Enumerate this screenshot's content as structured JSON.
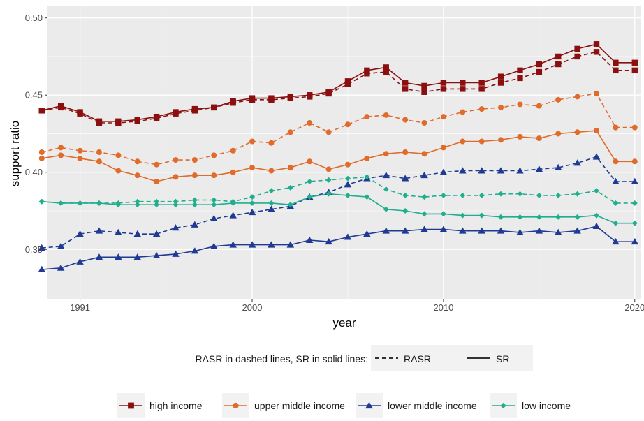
{
  "chart_data": {
    "type": "line",
    "xlabel": "year",
    "ylabel": "support ratio",
    "xlim": [
      1989.3,
      2020.3
    ],
    "ylim": [
      0.318,
      0.508
    ],
    "x_ticks": [
      1991,
      2000,
      2010,
      2020
    ],
    "x_tick_labels": [
      "1991",
      "2000",
      "2010",
      "2020"
    ],
    "y_ticks": [
      0.35,
      0.4,
      0.45,
      0.5
    ],
    "y_tick_labels": [
      "0.35",
      "0.40",
      "0.45",
      "0.50"
    ],
    "grid": true,
    "x": [
      1989,
      1990,
      1991,
      1992,
      1993,
      1994,
      1995,
      1996,
      1997,
      1998,
      1999,
      2000,
      2001,
      2002,
      2003,
      2004,
      2005,
      2006,
      2007,
      2008,
      2009,
      2010,
      2011,
      2012,
      2013,
      2014,
      2015,
      2016,
      2017,
      2018,
      2019,
      2020
    ],
    "series": [
      {
        "name": "high income",
        "line": "SR",
        "color": "#8b0f0f",
        "marker": "square",
        "values": [
          0.44,
          0.443,
          0.439,
          0.433,
          0.433,
          0.434,
          0.436,
          0.439,
          0.441,
          0.442,
          0.446,
          0.448,
          0.448,
          0.449,
          0.45,
          0.452,
          0.459,
          0.466,
          0.468,
          0.458,
          0.456,
          0.458,
          0.458,
          0.458,
          0.462,
          0.466,
          0.47,
          0.475,
          0.48,
          0.483,
          0.471,
          0.471
        ]
      },
      {
        "name": "high income",
        "line": "RASR",
        "color": "#8b0f0f",
        "marker": "square",
        "values": [
          0.44,
          0.442,
          0.438,
          0.432,
          0.432,
          0.433,
          0.435,
          0.438,
          0.44,
          0.442,
          0.445,
          0.447,
          0.447,
          0.448,
          0.449,
          0.451,
          0.457,
          0.464,
          0.465,
          0.454,
          0.452,
          0.454,
          0.454,
          0.454,
          0.458,
          0.461,
          0.465,
          0.47,
          0.475,
          0.478,
          0.466,
          0.466
        ]
      },
      {
        "name": "upper middle income",
        "line": "SR",
        "color": "#e06b2b",
        "marker": "circle",
        "values": [
          0.409,
          0.411,
          0.409,
          0.407,
          0.401,
          0.398,
          0.394,
          0.397,
          0.398,
          0.398,
          0.4,
          0.403,
          0.401,
          0.403,
          0.407,
          0.402,
          0.405,
          0.409,
          0.412,
          0.413,
          0.412,
          0.416,
          0.42,
          0.42,
          0.421,
          0.423,
          0.422,
          0.425,
          0.426,
          0.427,
          0.407,
          0.407
        ]
      },
      {
        "name": "upper middle income",
        "line": "RASR",
        "color": "#e06b2b",
        "marker": "circle",
        "values": [
          0.413,
          0.416,
          0.414,
          0.413,
          0.411,
          0.407,
          0.405,
          0.408,
          0.408,
          0.411,
          0.414,
          0.42,
          0.419,
          0.426,
          0.432,
          0.426,
          0.431,
          0.436,
          0.437,
          0.434,
          0.432,
          0.436,
          0.439,
          0.441,
          0.442,
          0.444,
          0.443,
          0.447,
          0.449,
          0.451,
          0.429,
          0.429
        ]
      },
      {
        "name": "lower middle income",
        "line": "SR",
        "color": "#1f3a93",
        "marker": "triangle",
        "values": [
          0.337,
          0.338,
          0.342,
          0.345,
          0.345,
          0.345,
          0.346,
          0.347,
          0.349,
          0.352,
          0.353,
          0.353,
          0.353,
          0.353,
          0.356,
          0.355,
          0.358,
          0.36,
          0.362,
          0.362,
          0.363,
          0.363,
          0.362,
          0.362,
          0.362,
          0.361,
          0.362,
          0.361,
          0.362,
          0.365,
          0.355,
          0.355
        ]
      },
      {
        "name": "lower middle income",
        "line": "RASR",
        "color": "#1f3a93",
        "marker": "triangle",
        "values": [
          0.351,
          0.352,
          0.36,
          0.362,
          0.361,
          0.36,
          0.36,
          0.364,
          0.366,
          0.37,
          0.372,
          0.374,
          0.376,
          0.378,
          0.384,
          0.387,
          0.392,
          0.396,
          0.398,
          0.396,
          0.398,
          0.4,
          0.401,
          0.401,
          0.401,
          0.401,
          0.402,
          0.403,
          0.406,
          0.41,
          0.394,
          0.394
        ]
      },
      {
        "name": "low income",
        "line": "SR",
        "color": "#1fae8e",
        "marker": "diamond",
        "values": [
          0.381,
          0.38,
          0.38,
          0.38,
          0.379,
          0.379,
          0.379,
          0.379,
          0.379,
          0.379,
          0.38,
          0.38,
          0.38,
          0.379,
          0.384,
          0.386,
          0.385,
          0.384,
          0.376,
          0.375,
          0.373,
          0.373,
          0.372,
          0.372,
          0.371,
          0.371,
          0.371,
          0.371,
          0.371,
          0.372,
          0.367,
          0.367
        ]
      },
      {
        "name": "low income",
        "line": "RASR",
        "color": "#1fae8e",
        "marker": "diamond",
        "values": [
          0.381,
          0.38,
          0.38,
          0.38,
          0.38,
          0.381,
          0.381,
          0.381,
          0.382,
          0.382,
          0.381,
          0.384,
          0.388,
          0.39,
          0.394,
          0.395,
          0.396,
          0.397,
          0.389,
          0.385,
          0.384,
          0.385,
          0.385,
          0.385,
          0.386,
          0.386,
          0.385,
          0.385,
          0.386,
          0.388,
          0.38,
          0.38
        ]
      }
    ],
    "legend": {
      "placement": "bottom",
      "linetype_title": "RASR in dashed lines, SR in solid lines:",
      "linetype_items": [
        {
          "label": "RASR",
          "dash": "dashed"
        },
        {
          "label": "SR",
          "dash": "solid"
        }
      ],
      "group_items": [
        {
          "label": "high income",
          "color": "#8b0f0f",
          "marker": "square"
        },
        {
          "label": "upper middle income",
          "color": "#e06b2b",
          "marker": "circle"
        },
        {
          "label": "lower middle income",
          "color": "#1f3a93",
          "marker": "triangle"
        },
        {
          "label": "low income",
          "color": "#1fae8e",
          "marker": "diamond"
        }
      ]
    },
    "panel_background": "#ebebeb",
    "grid_color": "#ffffff"
  }
}
